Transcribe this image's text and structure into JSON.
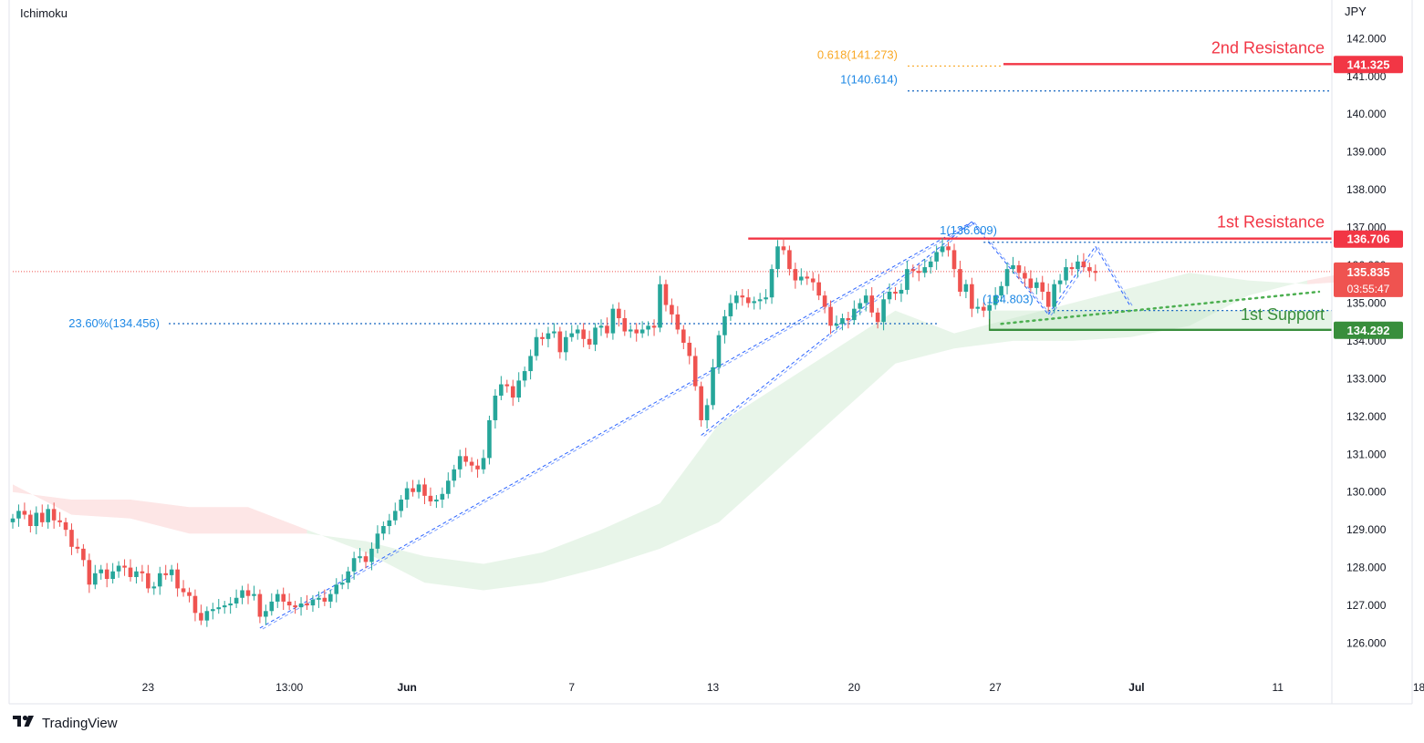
{
  "indicator_label": "Ichimoku",
  "currency_label": "JPY",
  "brand": {
    "name": "TradingView",
    "icon": "tradingview-logo-icon"
  },
  "colors": {
    "bull": "#26a69a",
    "bear": "#ef5350",
    "resistance": "#f23645",
    "support": "#388e3c",
    "fib_blue": "#2962ff",
    "fib_orange": "#f9a825",
    "cloud_green": "#e8f5e9",
    "cloud_red": "#fde6e6"
  },
  "chart_data": {
    "type": "candlestick",
    "symbol_currency": "JPY",
    "ylim": [
      125.4,
      142.3
    ],
    "y_ticks": [
      "126.000",
      "127.000",
      "128.000",
      "129.000",
      "130.000",
      "131.000",
      "132.000",
      "133.000",
      "134.000",
      "135.000",
      "136.000",
      "137.000",
      "138.000",
      "139.000",
      "140.000",
      "141.000",
      "142.000"
    ],
    "x_ticks": [
      {
        "label": "23",
        "bar": 23
      },
      {
        "label": "13:00",
        "bar": 47
      },
      {
        "label": "Jun",
        "bar": 67
      },
      {
        "label": "7",
        "bar": 95
      },
      {
        "label": "13",
        "bar": 119
      },
      {
        "label": "20",
        "bar": 143
      },
      {
        "label": "27",
        "bar": 167
      },
      {
        "label": "Jul",
        "bar": 191
      },
      {
        "label": "11",
        "bar": 215
      },
      {
        "label": "18",
        "bar": 239
      }
    ],
    "bars_total": 250,
    "closes": [
      129.3,
      129.5,
      129.4,
      129.1,
      129.45,
      129.2,
      129.55,
      129.25,
      129.2,
      129.0,
      128.55,
      128.5,
      128.2,
      127.55,
      127.85,
      127.95,
      127.7,
      127.9,
      128.05,
      128.0,
      127.75,
      127.9,
      127.85,
      127.45,
      127.5,
      127.85,
      127.8,
      127.95,
      127.45,
      127.35,
      127.25,
      126.8,
      126.6,
      126.85,
      126.9,
      126.95,
      127.0,
      127.05,
      127.2,
      127.4,
      127.25,
      127.3,
      126.7,
      126.85,
      127.1,
      127.3,
      127.1,
      127.0,
      126.95,
      127.05,
      127.0,
      127.15,
      127.2,
      127.1,
      127.3,
      127.55,
      127.6,
      127.9,
      128.25,
      128.3,
      128.15,
      128.5,
      128.9,
      129.1,
      129.25,
      129.5,
      129.8,
      130.1,
      130.0,
      130.2,
      129.9,
      129.75,
      129.8,
      129.95,
      130.3,
      130.6,
      130.95,
      130.8,
      130.7,
      130.6,
      130.9,
      131.9,
      132.55,
      132.85,
      132.8,
      132.5,
      132.95,
      133.2,
      133.6,
      134.1,
      134.05,
      134.2,
      134.25,
      133.7,
      134.1,
      134.2,
      134.3,
      134.05,
      133.9,
      134.35,
      134.4,
      134.2,
      134.85,
      134.6,
      134.25,
      134.3,
      134.2,
      134.3,
      134.4,
      134.35,
      135.5,
      134.95,
      134.7,
      134.3,
      133.95,
      133.6,
      132.8,
      131.9,
      132.3,
      133.3,
      134.15,
      134.65,
      135.0,
      135.2,
      135.15,
      135.0,
      135.05,
      135.1,
      135.15,
      135.9,
      136.5,
      136.4,
      135.9,
      135.6,
      135.7,
      135.65,
      135.55,
      135.2,
      134.9,
      134.4,
      134.45,
      134.6,
      134.55,
      134.85,
      135.0,
      135.2,
      134.75,
      134.5,
      135.1,
      135.3,
      135.25,
      135.35,
      135.9,
      135.85,
      135.8,
      135.95,
      136.1,
      136.35,
      136.5,
      136.4,
      135.9,
      135.3,
      135.5,
      134.85,
      134.9,
      134.8,
      134.95,
      135.2,
      135.45,
      135.9,
      136.0,
      135.8,
      135.65,
      135.4,
      135.55,
      135.3,
      134.9,
      135.5,
      135.6,
      135.95,
      135.9,
      136.1,
      135.95,
      135.85,
      135.8
    ],
    "candles_bars": [
      0,
      193
    ],
    "ichimoku_cloud": {
      "bars": [
        0,
        10,
        20,
        30,
        40,
        50,
        60,
        70,
        80,
        90,
        100,
        110,
        120,
        130,
        140,
        150,
        160,
        170,
        180,
        190,
        200,
        210,
        220,
        230
      ],
      "span_a": [
        130.2,
        129.4,
        129.3,
        128.9,
        128.9,
        128.9,
        128.7,
        128.3,
        128.1,
        128.4,
        129.0,
        129.7,
        131.8,
        132.8,
        133.8,
        134.8,
        134.2,
        134.6,
        135.0,
        135.4,
        135.8,
        135.6,
        135.5,
        135.6
      ],
      "span_b": [
        130.0,
        129.8,
        129.8,
        129.6,
        129.6,
        129.0,
        128.4,
        127.6,
        127.4,
        127.6,
        128.0,
        128.5,
        129.2,
        130.6,
        132.0,
        133.4,
        133.8,
        134.0,
        134.0,
        134.1,
        134.4,
        135.2,
        135.6,
        135.9
      ]
    },
    "fibonacci": [
      {
        "label": "23.60%(134.456)",
        "value": 134.456,
        "color": "blue"
      },
      {
        "label": "1(136.609)",
        "value": 136.609,
        "color": "blue"
      },
      {
        "label": "(134.803)",
        "value": 134.803,
        "color": "blue"
      },
      {
        "label": "1(140.614)",
        "value": 140.614,
        "color": "blue"
      },
      {
        "label": "0.618(141.273)",
        "value": 141.273,
        "color": "orange"
      }
    ],
    "levels": [
      {
        "name": "2nd Resistance",
        "value": 141.325,
        "tag": "141.325",
        "kind": "resistance"
      },
      {
        "name": "1st Resistance",
        "value": 136.706,
        "tag": "136.706",
        "kind": "resistance"
      },
      {
        "name": "1st Support",
        "value": 134.292,
        "tag": "134.292",
        "kind": "support"
      }
    ],
    "last_price": {
      "value": 135.835,
      "tag": "135.835",
      "countdown": "03:55:47"
    },
    "trendline": {
      "from": {
        "bar": 168,
        "price": 134.45
      },
      "to": {
        "bar": 222,
        "price": 135.3
      }
    },
    "zigzag": [
      {
        "bar": 42,
        "price": 126.4
      },
      {
        "bar": 163,
        "price": 137.15
      },
      {
        "bar": 117,
        "price": 131.5
      },
      {
        "bar": 163,
        "price": 137.15
      },
      {
        "bar": 176,
        "price": 134.7
      },
      {
        "bar": 184,
        "price": 136.5
      },
      {
        "bar": 190,
        "price": 134.9
      }
    ]
  }
}
